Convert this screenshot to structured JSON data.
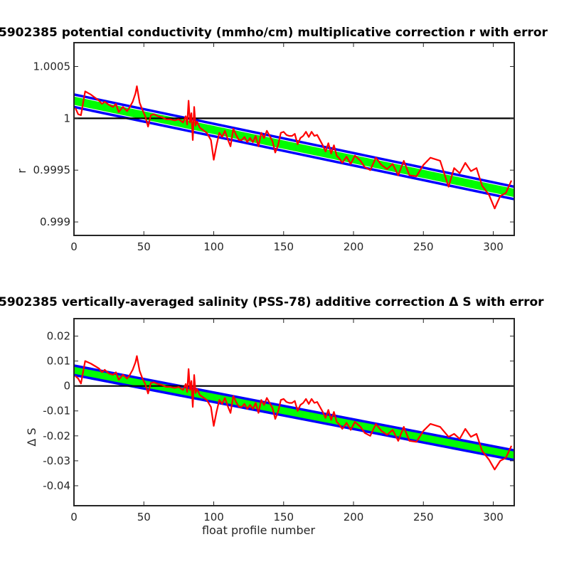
{
  "chart_data": [
    {
      "type": "line",
      "title": "5902385 potential conductivity (mmho/cm) multiplicative correction r with error",
      "xlabel": "",
      "ylabel": "r",
      "xlim": [
        0,
        315
      ],
      "ylim": [
        0.99887,
        1.00073
      ],
      "xticks": [
        0,
        50,
        100,
        150,
        200,
        250,
        300
      ],
      "xtick_labels": [
        "0",
        "50",
        "100",
        "150",
        "200",
        "250",
        "300"
      ],
      "yticks": [
        0.999,
        0.9995,
        1,
        1.0005
      ],
      "ytick_labels": [
        "0.999",
        "0.9995",
        "1",
        "1.0005"
      ],
      "grid": false,
      "colors": {
        "fit": "#00ff00",
        "error": "#0000ff",
        "profile": "#ff0000",
        "reference": "#000000"
      },
      "series": [
        {
          "role": "fit_band",
          "x": [
            0,
            315
          ],
          "y_low": [
            1.00013,
            0.99924
          ],
          "y_high": [
            1.00021,
            0.99932
          ]
        },
        {
          "role": "error_upper",
          "x": [
            0,
            315
          ],
          "y": [
            1.00023,
            0.99934
          ]
        },
        {
          "role": "error_lower",
          "x": [
            0,
            315
          ],
          "y": [
            1.00011,
            0.99922
          ]
        },
        {
          "role": "reference",
          "x": [
            0,
            315
          ],
          "y": [
            1.0,
            1.0
          ]
        },
        {
          "role": "profile",
          "x": [
            1,
            3,
            5,
            8,
            12,
            15,
            18,
            20,
            22,
            25,
            28,
            30,
            32,
            35,
            38,
            40,
            42,
            44,
            45,
            47,
            49,
            51,
            53,
            55,
            57,
            60,
            63,
            66,
            69,
            72,
            75,
            78,
            80,
            81,
            82,
            83,
            84,
            85,
            86,
            87,
            88,
            90,
            92,
            95,
            98,
            100,
            102,
            104,
            106,
            108,
            110,
            112,
            114,
            116,
            118,
            120,
            122,
            124,
            126,
            128,
            130,
            132,
            134,
            136,
            138,
            140,
            142,
            144,
            146,
            148,
            150,
            152,
            154,
            156,
            158,
            160,
            162,
            164,
            166,
            168,
            170,
            172,
            174,
            176,
            178,
            180,
            182,
            184,
            186,
            188,
            190,
            192,
            195,
            198,
            201,
            205,
            208,
            212,
            216,
            220,
            224,
            228,
            232,
            236,
            240,
            245,
            250,
            255,
            262,
            268,
            272,
            276,
            280,
            284,
            288,
            292,
            297,
            301,
            305,
            309,
            313
          ],
          "y": [
            1.0001,
            1.00004,
            1.00003,
            1.00026,
            1.00023,
            1.0002,
            1.00017,
            1.00014,
            1.00016,
            1.00013,
            1.00011,
            1.00014,
            1.00006,
            1.00011,
            1.00007,
            1.00011,
            1.00016,
            1.00024,
            1.00031,
            1.00015,
            1.00008,
            1.00002,
            0.99992,
            1.00003,
            1.00004,
            1.00002,
            1.00001,
            0.99999,
            0.99999,
            0.99998,
            0.99999,
            0.99996,
            1.00002,
            0.99994,
            1.00017,
            0.99996,
            1.00005,
            0.99979,
            1.00011,
            0.99993,
            0.99997,
            0.99991,
            0.99989,
            0.99986,
            0.99979,
            0.9996,
            0.99974,
            0.99986,
            0.99982,
            0.99988,
            0.9998,
            0.99973,
            0.9999,
            0.99984,
            0.99979,
            0.99979,
            0.99982,
            0.99977,
            0.99981,
            0.99977,
            0.99983,
            0.99973,
            0.99986,
            0.99981,
            0.99988,
            0.99983,
            0.99978,
            0.99967,
            0.99974,
            0.99986,
            0.99987,
            0.99984,
            0.99983,
            0.99983,
            0.99985,
            0.99975,
            0.99981,
            0.99983,
            0.99987,
            0.99982,
            0.99987,
            0.99983,
            0.99984,
            0.99979,
            0.99974,
            0.99968,
            0.99976,
            0.99966,
            0.99974,
            0.99964,
            0.99961,
            0.99957,
            0.99963,
            0.99956,
            0.99964,
            0.99959,
            0.99953,
            0.9995,
            0.99962,
            0.99955,
            0.99951,
            0.99956,
            0.99945,
            0.99959,
            0.99945,
            0.99944,
            0.99955,
            0.99962,
            0.99959,
            0.99934,
            0.99952,
            0.99947,
            0.99957,
            0.99949,
            0.99952,
            0.99935,
            0.99926,
            0.99913,
            0.99925,
            0.99928,
            0.9994
          ]
        }
      ]
    },
    {
      "type": "line",
      "title": "5902385 vertically-averaged salinity (PSS-78) additive correction Δ S with error",
      "xlabel": "float profile number",
      "ylabel": "Δ S",
      "xlim": [
        0,
        315
      ],
      "ylim": [
        -0.048,
        0.027
      ],
      "xticks": [
        0,
        50,
        100,
        150,
        200,
        250,
        300
      ],
      "xtick_labels": [
        "0",
        "50",
        "100",
        "150",
        "200",
        "250",
        "300"
      ],
      "yticks": [
        -0.04,
        -0.03,
        -0.02,
        -0.01,
        0,
        0.01,
        0.02
      ],
      "ytick_labels": [
        "-0.04",
        "-0.03",
        "-0.02",
        "-0.01",
        "0",
        "0.01",
        "0.02"
      ],
      "grid": false,
      "colors": {
        "fit": "#00ff00",
        "error": "#0000ff",
        "profile": "#ff0000",
        "reference": "#000000"
      },
      "series": [
        {
          "role": "fit_band",
          "x": [
            0,
            315
          ],
          "y_low": [
            0.0048,
            -0.0293
          ],
          "y_high": [
            0.0078,
            -0.0262
          ]
        },
        {
          "role": "error_upper",
          "x": [
            0,
            315
          ],
          "y": [
            0.0082,
            -0.0258
          ]
        },
        {
          "role": "error_lower",
          "x": [
            0,
            315
          ],
          "y": [
            0.0044,
            -0.0297
          ]
        },
        {
          "role": "reference",
          "x": [
            0,
            315
          ],
          "y": [
            0,
            0
          ]
        },
        {
          "role": "profile",
          "x": [
            1,
            3,
            5,
            8,
            12,
            15,
            18,
            20,
            22,
            25,
            28,
            30,
            32,
            35,
            38,
            40,
            42,
            44,
            45,
            47,
            49,
            51,
            53,
            55,
            57,
            60,
            63,
            66,
            69,
            72,
            75,
            78,
            80,
            81,
            82,
            83,
            84,
            85,
            86,
            87,
            88,
            90,
            92,
            95,
            98,
            100,
            102,
            104,
            106,
            108,
            110,
            112,
            114,
            116,
            118,
            120,
            122,
            124,
            126,
            128,
            130,
            132,
            134,
            136,
            138,
            140,
            142,
            144,
            146,
            148,
            150,
            152,
            154,
            156,
            158,
            160,
            162,
            164,
            166,
            168,
            170,
            172,
            174,
            176,
            178,
            180,
            182,
            184,
            186,
            188,
            190,
            192,
            195,
            198,
            201,
            205,
            208,
            212,
            216,
            220,
            224,
            228,
            232,
            236,
            240,
            245,
            250,
            255,
            262,
            268,
            272,
            276,
            280,
            284,
            288,
            292,
            297,
            301,
            305,
            309,
            313
          ],
          "y": [
            0.004,
            0.003,
            0.001,
            0.01,
            0.009,
            0.008,
            0.007,
            0.0055,
            0.0065,
            0.005,
            0.0045,
            0.0055,
            0.0025,
            0.0045,
            0.003,
            0.0045,
            0.0065,
            0.0095,
            0.012,
            0.006,
            0.003,
            0.0008,
            -0.003,
            0.0012,
            0.0015,
            0.0008,
            0.0004,
            -0.0004,
            -0.0004,
            -0.0008,
            -0.0004,
            -0.0016,
            0.0008,
            -0.0024,
            0.0068,
            -0.0016,
            0.002,
            -0.0084,
            0.0044,
            -0.0028,
            -0.0012,
            -0.0036,
            -0.0044,
            -0.0056,
            -0.0084,
            -0.016,
            -0.0104,
            -0.0056,
            -0.0072,
            -0.0048,
            -0.008,
            -0.0108,
            -0.004,
            -0.0064,
            -0.0084,
            -0.0084,
            -0.0072,
            -0.0092,
            -0.0076,
            -0.0092,
            -0.0068,
            -0.0108,
            -0.0056,
            -0.0076,
            -0.0048,
            -0.0068,
            -0.0088,
            -0.0132,
            -0.0104,
            -0.0056,
            -0.0052,
            -0.0064,
            -0.0068,
            -0.0068,
            -0.006,
            -0.01,
            -0.0076,
            -0.0068,
            -0.0052,
            -0.0072,
            -0.0052,
            -0.0068,
            -0.0064,
            -0.0084,
            -0.0104,
            -0.0128,
            -0.0096,
            -0.0136,
            -0.0104,
            -0.0144,
            -0.0156,
            -0.0172,
            -0.0148,
            -0.0176,
            -0.0144,
            -0.0164,
            -0.0188,
            -0.02,
            -0.0152,
            -0.018,
            -0.0196,
            -0.0176,
            -0.022,
            -0.0164,
            -0.022,
            -0.0224,
            -0.018,
            -0.0152,
            -0.0164,
            -0.0204,
            -0.0192,
            -0.0212,
            -0.0172,
            -0.0204,
            -0.0192,
            -0.026,
            -0.0296,
            -0.0335,
            -0.03,
            -0.0288,
            -0.024
          ]
        }
      ]
    }
  ]
}
